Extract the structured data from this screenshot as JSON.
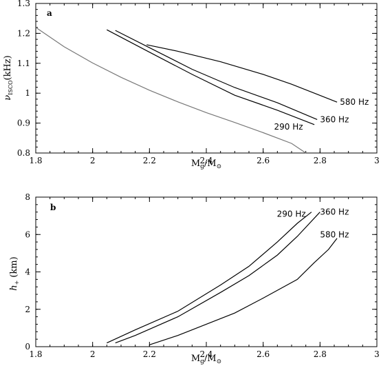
{
  "chart_data": [
    {
      "panel": "a",
      "type": "line",
      "xlabel_main": "M",
      "xlabel_sub": "g",
      "xlabel_den_main": "/M",
      "xlabel_den_sub": "⊙",
      "ylabel_main": "ν",
      "ylabel_sub": "ISCO",
      "ylabel_unit": "(kHz)",
      "xlim": [
        1.8,
        3.0
      ],
      "ylim": [
        0.8,
        1.3
      ],
      "xticks": [
        "1.8",
        "2",
        "2.2",
        "2.4",
        "2.6",
        "2.8",
        "3"
      ],
      "yticks": [
        "0.8",
        "0.9",
        "1",
        "1.1",
        "1.2",
        "1.3"
      ],
      "series": [
        {
          "name": "",
          "color": "#777777",
          "x": [
            1.8,
            1.9,
            2.0,
            2.1,
            2.2,
            2.3,
            2.4,
            2.5,
            2.6,
            2.7,
            2.75
          ],
          "y": [
            1.22,
            1.155,
            1.101,
            1.053,
            1.01,
            0.971,
            0.935,
            0.902,
            0.868,
            0.832,
            0.8
          ]
        },
        {
          "name": "290 Hz",
          "color": "#000000",
          "x": [
            2.05,
            2.2,
            2.35,
            2.5,
            2.65,
            2.78
          ],
          "y": [
            1.212,
            1.137,
            1.063,
            0.993,
            0.943,
            0.895
          ]
        },
        {
          "name": "360 Hz",
          "color": "#000000",
          "x": [
            2.08,
            2.2,
            2.35,
            2.5,
            2.65,
            2.79
          ],
          "y": [
            1.21,
            1.152,
            1.08,
            1.019,
            0.968,
            0.912
          ]
        },
        {
          "name": "580 Hz",
          "color": "#000000",
          "x": [
            2.19,
            2.3,
            2.45,
            2.6,
            2.7,
            2.78,
            2.86
          ],
          "y": [
            1.162,
            1.14,
            1.105,
            1.063,
            1.03,
            1.0,
            0.97
          ]
        }
      ]
    },
    {
      "panel": "b",
      "type": "line",
      "xlabel_main": "M",
      "xlabel_sub": "g",
      "xlabel_den_main": "/M",
      "xlabel_den_sub": "⊙",
      "ylabel_main": "h",
      "ylabel_sub": "+",
      "ylabel_unit": "(km)",
      "xlim": [
        1.8,
        3.0
      ],
      "ylim": [
        0,
        8
      ],
      "xticks": [
        "1.8",
        "2",
        "2.2",
        "2.4",
        "2.6",
        "2.8",
        "3"
      ],
      "yticks": [
        "0",
        "2",
        "4",
        "6",
        "8"
      ],
      "series": [
        {
          "name": "290 Hz",
          "color": "#000000",
          "x": [
            2.05,
            2.15,
            2.3,
            2.45,
            2.55,
            2.65,
            2.72,
            2.77
          ],
          "y": [
            0.2,
            0.9,
            1.9,
            3.3,
            4.3,
            5.6,
            6.6,
            7.2
          ]
        },
        {
          "name": "360 Hz",
          "color": "#000000",
          "x": [
            2.08,
            2.15,
            2.3,
            2.45,
            2.55,
            2.65,
            2.72,
            2.8
          ],
          "y": [
            0.2,
            0.6,
            1.6,
            2.9,
            3.8,
            4.9,
            5.9,
            7.2
          ]
        },
        {
          "name": "580 Hz",
          "color": "#000000",
          "x": [
            2.2,
            2.3,
            2.4,
            2.5,
            2.6,
            2.72,
            2.78,
            2.83,
            2.86
          ],
          "y": [
            0.1,
            0.6,
            1.2,
            1.8,
            2.6,
            3.6,
            4.5,
            5.2,
            5.8
          ]
        }
      ]
    }
  ]
}
